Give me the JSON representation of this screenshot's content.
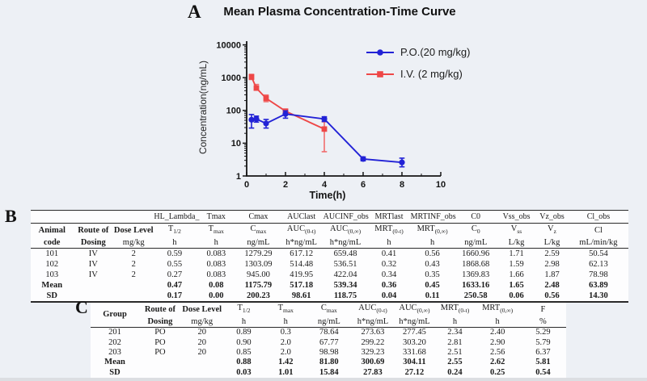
{
  "panels": {
    "a": "A",
    "b": "B",
    "c": "C"
  },
  "chart_data": {
    "type": "line",
    "title": "Mean Plasma Concentration-Time Curve",
    "xlabel": "Time(h)",
    "ylabel": "Concentration(ng/mL)",
    "x_ticks": [
      0,
      2,
      4,
      6,
      8,
      10
    ],
    "x_minor_ticks": [
      1,
      3,
      5,
      7,
      9
    ],
    "y_ticks": [
      1,
      10,
      100,
      1000,
      10000
    ],
    "xlim": [
      0,
      10
    ],
    "ylim": [
      1,
      10000
    ],
    "y_scale": "log10",
    "grid": false,
    "legend_position": "top-right",
    "axis_color": "#151515",
    "series": [
      {
        "name": "P.O.(20 mg/kg)",
        "marker": "circle",
        "color": "#2222d6",
        "err_color": "#2222d6",
        "points": [
          {
            "x": 0.25,
            "y": 52,
            "lo": 29,
            "hi": 75
          },
          {
            "x": 0.5,
            "y": 55,
            "lo": 44,
            "hi": 67
          },
          {
            "x": 1,
            "y": 40,
            "lo": 29,
            "hi": 53
          },
          {
            "x": 2,
            "y": 78,
            "lo": 58,
            "hi": 97
          },
          {
            "x": 4,
            "y": 55,
            "lo": 46,
            "hi": 64
          },
          {
            "x": 6,
            "y": 3.3,
            "lo": 2.9,
            "hi": 3.8
          },
          {
            "x": 8,
            "y": 2.6,
            "lo": 1.9,
            "hi": 3.5
          }
        ]
      },
      {
        "name": "I.V. (2 mg/kg)",
        "marker": "square",
        "color": "#ee4747",
        "err_color": "#f06d6d",
        "points": [
          {
            "x": 0.25,
            "y": 1050,
            "lo": 880,
            "hi": 1260
          },
          {
            "x": 0.5,
            "y": 480,
            "lo": 415,
            "hi": 620
          },
          {
            "x": 1,
            "y": 235,
            "lo": 185,
            "hi": 295
          },
          {
            "x": 2,
            "y": 95,
            "lo": 82,
            "hi": 108
          },
          {
            "x": 4,
            "y": 27,
            "lo": 5.5,
            "hi": 45
          }
        ]
      }
    ]
  },
  "table_iv": {
    "software_header": [
      "",
      "",
      "",
      "HL_Lambda_",
      "Tmax",
      "Cmax",
      "AUClast",
      "AUCINF_obs",
      "MRTlast",
      "MRTINF_obs",
      "C0",
      "Vss_obs",
      "Vz_obs",
      "Cl_obs"
    ],
    "param_header": [
      "Animal",
      "Route of",
      "Dose Level",
      "T_{1/2}",
      "T_{max}",
      "C_{max}",
      "AUC_{(0-t)}",
      "AUC_{(0,∞)}",
      "MRT_{(0-t)}",
      "MRT_{(0,∞)}",
      "C_{0}",
      "V_{ss}",
      "V_{z}",
      "Cl"
    ],
    "unit_header": [
      "code",
      "Dosing",
      "mg/kg",
      "h",
      "h",
      "ng/mL",
      "h*ng/mL",
      "h*ng/mL",
      "h",
      "h",
      "ng/mL",
      "L/kg",
      "L/kg",
      "mL/min/kg"
    ],
    "rows": [
      [
        "101",
        "IV",
        "2",
        "0.59",
        "0.083",
        "1279.29",
        "617.12",
        "659.48",
        "0.41",
        "0.56",
        "1660.96",
        "1.71",
        "2.59",
        "50.54"
      ],
      [
        "102",
        "IV",
        "2",
        "0.55",
        "0.083",
        "1303.09",
        "514.48",
        "536.51",
        "0.32",
        "0.43",
        "1868.68",
        "1.59",
        "2.98",
        "62.13"
      ],
      [
        "103",
        "IV",
        "2",
        "0.27",
        "0.083",
        "945.00",
        "419.95",
        "422.04",
        "0.34",
        "0.35",
        "1369.83",
        "1.66",
        "1.87",
        "78.98"
      ],
      [
        "Mean",
        "",
        "",
        "0.47",
        "0.08",
        "1175.79",
        "517.18",
        "539.34",
        "0.36",
        "0.45",
        "1633.16",
        "1.65",
        "2.48",
        "63.89"
      ],
      [
        "SD",
        "",
        "",
        "0.17",
        "0.00",
        "200.23",
        "98.61",
        "118.75",
        "0.04",
        "0.11",
        "250.58",
        "0.06",
        "0.56",
        "14.30"
      ]
    ]
  },
  "table_po": {
    "param_header": [
      "Group",
      "Route of",
      "Dose Level",
      "T_{1/2}",
      "T_{max}",
      "C_{max}",
      "AUC_{(0-t)}",
      "AUC_{(0,∞)}",
      "MRT_{(0-t)}",
      "MRT_{(0,∞)}",
      "F"
    ],
    "unit_header": [
      "Dosing",
      "mg/kg",
      "h",
      "h",
      "ng/mL",
      "h*ng/mL",
      "h*ng/mL",
      "h",
      "h",
      "%"
    ],
    "rows": [
      [
        "201",
        "PO",
        "20",
        "0.89",
        "0.3",
        "78.64",
        "273.63",
        "277.45",
        "2.34",
        "2.40",
        "5.29"
      ],
      [
        "202",
        "PO",
        "20",
        "0.90",
        "2.0",
        "67.77",
        "299.22",
        "303.20",
        "2.81",
        "2.90",
        "5.79"
      ],
      [
        "203",
        "PO",
        "20",
        "0.85",
        "2.0",
        "98.98",
        "329.23",
        "331.68",
        "2.51",
        "2.56",
        "6.37"
      ],
      [
        "Mean",
        "",
        "",
        "0.88",
        "1.42",
        "81.80",
        "300.69",
        "304.11",
        "2.55",
        "2.62",
        "5.81"
      ],
      [
        "SD",
        "",
        "",
        "0.03",
        "1.01",
        "15.84",
        "27.83",
        "27.12",
        "0.24",
        "0.25",
        "0.54"
      ]
    ]
  }
}
